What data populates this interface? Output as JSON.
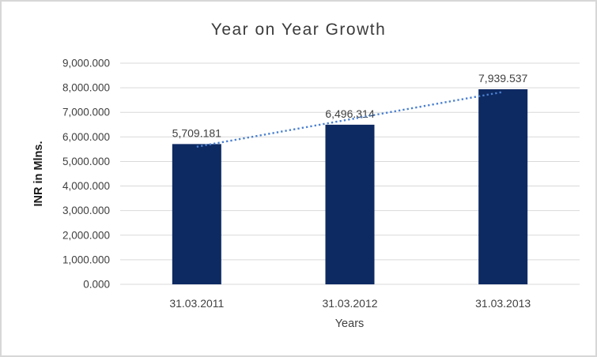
{
  "window": {
    "background": "#ffffff",
    "border_color": "#d7d7d7"
  },
  "chart_data": {
    "type": "bar",
    "title": "Year on Year Growth",
    "categories": [
      "31.03.2011",
      "31.03.2012",
      "31.03.2013"
    ],
    "series": [
      {
        "name": "INR in Mlns.",
        "values": [
          5709.181,
          6496.314,
          7939.537
        ]
      }
    ],
    "data_labels": [
      "5,709.181",
      "6,496.314",
      "7,939.537"
    ],
    "xlabel": "Years",
    "ylabel": "INR in Mlns.",
    "ylim": [
      0,
      9000
    ],
    "ytick_step": 1000,
    "ytick_labels": [
      "0.000",
      "1,000.000",
      "2,000.000",
      "3,000.000",
      "4,000.000",
      "5,000.000",
      "6,000.000",
      "7,000.000",
      "8,000.000",
      "9,000.000"
    ],
    "grid": true,
    "legend": false,
    "trendline": {
      "type": "linear",
      "style": "dotted",
      "color": "#4a80d0"
    },
    "colors": {
      "bar": "#0e2a62",
      "gridline": "#d9d9d9",
      "axis_text": "#404040",
      "data_label_text": "#404040",
      "title_text": "#3b3b3b",
      "axis_title_text": "#1a1a1a"
    }
  }
}
